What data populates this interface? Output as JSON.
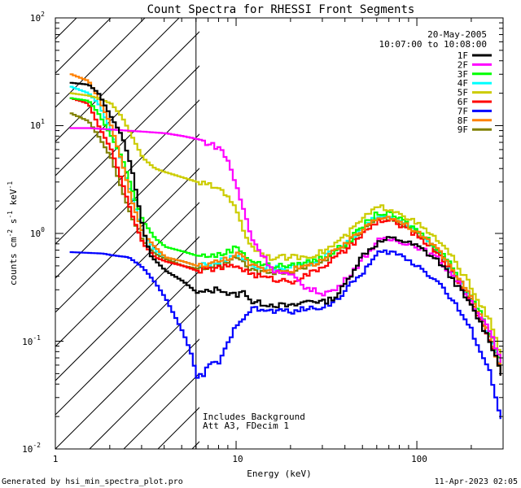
{
  "chart_data": {
    "type": "line",
    "title": "Count Spectra for RHESSI Front Segments",
    "xlabel": "Energy (keV)",
    "ylabel_parts": {
      "main": "counts cm",
      "exp1": "-2",
      "s": " s",
      "exp2": "-1",
      "kev": " keV",
      "exp3": "-1"
    },
    "xscale": "log",
    "yscale": "log",
    "xlim": [
      1,
      300
    ],
    "ylim": [
      0.01,
      100
    ],
    "x_ticks": [
      {
        "value": 1,
        "label": "1"
      },
      {
        "value": 10,
        "label": "10"
      },
      {
        "value": 100,
        "label": "100"
      }
    ],
    "y_ticks": [
      {
        "value": 0.01,
        "base": "10",
        "exp": "-2"
      },
      {
        "value": 0.1,
        "base": "10",
        "exp": "-1"
      },
      {
        "value": 1,
        "base": "10",
        "exp": "0"
      },
      {
        "value": 10,
        "base": "10",
        "exp": "1"
      },
      {
        "value": 100,
        "base": "10",
        "exp": "2"
      }
    ],
    "date": "20-May-2005",
    "time_range": "10:07:00 to 10:08:00",
    "hatched_region_max_kev": 6,
    "annotations": [
      "Includes Background",
      "Att A3, FDecim  1"
    ],
    "footer_left": "Generated by hsi_min_spectra_plot.pro",
    "footer_right": "11-Apr-2023 02:05",
    "series": [
      {
        "name": "1F",
        "color": "#000000",
        "points": [
          [
            1.2,
            25
          ],
          [
            1.5,
            24
          ],
          [
            1.7,
            20
          ],
          [
            2.0,
            12
          ],
          [
            2.3,
            8
          ],
          [
            2.6,
            4
          ],
          [
            3.0,
            1.1
          ],
          [
            3.3,
            0.62
          ],
          [
            4,
            0.45
          ],
          [
            5,
            0.36
          ],
          [
            6,
            0.28
          ],
          [
            7,
            0.29
          ],
          [
            8,
            0.31
          ],
          [
            9,
            0.27
          ],
          [
            10,
            0.27
          ],
          [
            11,
            0.29
          ],
          [
            12,
            0.23
          ],
          [
            15,
            0.22
          ],
          [
            20,
            0.21
          ],
          [
            25,
            0.24
          ],
          [
            30,
            0.23
          ],
          [
            35,
            0.26
          ],
          [
            40,
            0.35
          ],
          [
            45,
            0.5
          ],
          [
            50,
            0.65
          ],
          [
            60,
            0.82
          ],
          [
            70,
            0.9
          ],
          [
            80,
            0.87
          ],
          [
            100,
            0.75
          ],
          [
            130,
            0.55
          ],
          [
            160,
            0.35
          ],
          [
            200,
            0.2
          ],
          [
            250,
            0.1
          ],
          [
            290,
            0.05
          ]
        ]
      },
      {
        "name": "2F",
        "color": "#ff00ff",
        "points": [
          [
            1.2,
            9.5
          ],
          [
            1.5,
            9.5
          ],
          [
            2,
            9.2
          ],
          [
            3,
            8.8
          ],
          [
            4,
            8.5
          ],
          [
            5,
            8
          ],
          [
            6,
            7.5
          ],
          [
            8,
            6.2
          ],
          [
            9,
            4.5
          ],
          [
            10,
            2.5
          ],
          [
            11,
            1.5
          ],
          [
            12,
            0.9
          ],
          [
            14,
            0.6
          ],
          [
            16,
            0.45
          ],
          [
            20,
            0.4
          ],
          [
            25,
            0.3
          ],
          [
            30,
            0.28
          ],
          [
            35,
            0.3
          ],
          [
            40,
            0.38
          ],
          [
            50,
            0.6
          ],
          [
            60,
            0.85
          ],
          [
            70,
            0.88
          ],
          [
            80,
            0.85
          ],
          [
            100,
            0.75
          ],
          [
            130,
            0.57
          ],
          [
            160,
            0.38
          ],
          [
            200,
            0.22
          ],
          [
            250,
            0.12
          ],
          [
            290,
            0.06
          ]
        ]
      },
      {
        "name": "3F",
        "color": "#00ff00",
        "points": [
          [
            1.2,
            18
          ],
          [
            1.5,
            17
          ],
          [
            1.7,
            13
          ],
          [
            2.0,
            8
          ],
          [
            2.3,
            5
          ],
          [
            2.6,
            2.6
          ],
          [
            3.0,
            1.3
          ],
          [
            3.5,
            0.9
          ],
          [
            4,
            0.75
          ],
          [
            5,
            0.68
          ],
          [
            6,
            0.62
          ],
          [
            8,
            0.63
          ],
          [
            10,
            0.75
          ],
          [
            12,
            0.55
          ],
          [
            15,
            0.5
          ],
          [
            20,
            0.5
          ],
          [
            25,
            0.55
          ],
          [
            30,
            0.6
          ],
          [
            40,
            0.8
          ],
          [
            50,
            1.2
          ],
          [
            60,
            1.55
          ],
          [
            70,
            1.5
          ],
          [
            80,
            1.35
          ],
          [
            100,
            1.05
          ],
          [
            130,
            0.72
          ],
          [
            160,
            0.45
          ],
          [
            200,
            0.25
          ],
          [
            250,
            0.12
          ],
          [
            290,
            0.06
          ]
        ]
      },
      {
        "name": "4F",
        "color": "#00ffff",
        "points": [
          [
            1.2,
            23
          ],
          [
            1.5,
            20
          ],
          [
            1.7,
            16
          ],
          [
            2.0,
            9
          ],
          [
            2.3,
            4.5
          ],
          [
            2.6,
            2.2
          ],
          [
            3.0,
            1.0
          ],
          [
            3.5,
            0.7
          ],
          [
            4,
            0.6
          ],
          [
            5,
            0.55
          ],
          [
            6,
            0.5
          ],
          [
            8,
            0.55
          ],
          [
            10,
            0.65
          ],
          [
            12,
            0.5
          ],
          [
            15,
            0.48
          ],
          [
            20,
            0.48
          ],
          [
            25,
            0.52
          ],
          [
            30,
            0.6
          ],
          [
            40,
            0.8
          ],
          [
            50,
            1.15
          ],
          [
            60,
            1.45
          ],
          [
            70,
            1.4
          ],
          [
            80,
            1.3
          ],
          [
            100,
            1.0
          ],
          [
            130,
            0.68
          ],
          [
            160,
            0.42
          ],
          [
            200,
            0.23
          ],
          [
            250,
            0.11
          ],
          [
            290,
            0.05
          ]
        ]
      },
      {
        "name": "5F",
        "color": "#cccc00",
        "points": [
          [
            1.2,
            20
          ],
          [
            1.5,
            19
          ],
          [
            1.7,
            18
          ],
          [
            2.0,
            16
          ],
          [
            2.3,
            12
          ],
          [
            2.6,
            8
          ],
          [
            3.0,
            5
          ],
          [
            3.5,
            4
          ],
          [
            4,
            3.7
          ],
          [
            5,
            3.3
          ],
          [
            6,
            3.0
          ],
          [
            8,
            2.6
          ],
          [
            9,
            2.2
          ],
          [
            10,
            1.5
          ],
          [
            11,
            1.0
          ],
          [
            12,
            0.75
          ],
          [
            15,
            0.6
          ],
          [
            20,
            0.6
          ],
          [
            25,
            0.62
          ],
          [
            30,
            0.68
          ],
          [
            40,
            0.95
          ],
          [
            50,
            1.4
          ],
          [
            60,
            1.75
          ],
          [
            70,
            1.7
          ],
          [
            80,
            1.55
          ],
          [
            100,
            1.2
          ],
          [
            130,
            0.85
          ],
          [
            160,
            0.55
          ],
          [
            200,
            0.3
          ],
          [
            250,
            0.15
          ],
          [
            290,
            0.07
          ]
        ]
      },
      {
        "name": "6F",
        "color": "#ff0000",
        "points": [
          [
            1.2,
            18
          ],
          [
            1.5,
            16
          ],
          [
            1.7,
            10
          ],
          [
            2.0,
            6
          ],
          [
            2.3,
            3
          ],
          [
            2.6,
            1.5
          ],
          [
            3.0,
            0.8
          ],
          [
            3.5,
            0.6
          ],
          [
            4,
            0.55
          ],
          [
            5,
            0.5
          ],
          [
            6,
            0.45
          ],
          [
            8,
            0.48
          ],
          [
            10,
            0.5
          ],
          [
            12,
            0.42
          ],
          [
            15,
            0.38
          ],
          [
            20,
            0.36
          ],
          [
            25,
            0.42
          ],
          [
            30,
            0.5
          ],
          [
            40,
            0.7
          ],
          [
            50,
            1.0
          ],
          [
            60,
            1.3
          ],
          [
            70,
            1.3
          ],
          [
            80,
            1.2
          ],
          [
            100,
            0.95
          ],
          [
            130,
            0.65
          ],
          [
            160,
            0.4
          ],
          [
            200,
            0.22
          ],
          [
            250,
            0.1
          ],
          [
            290,
            0.05
          ]
        ]
      },
      {
        "name": "7F",
        "color": "#0000ff",
        "points": [
          [
            1.2,
            0.67
          ],
          [
            1.5,
            0.66
          ],
          [
            1.8,
            0.65
          ],
          [
            2.0,
            0.63
          ],
          [
            2.5,
            0.6
          ],
          [
            3.0,
            0.48
          ],
          [
            3.5,
            0.35
          ],
          [
            4,
            0.25
          ],
          [
            4.5,
            0.17
          ],
          [
            5,
            0.12
          ],
          [
            5.5,
            0.08
          ],
          [
            6,
            0.045
          ],
          [
            6.5,
            0.05
          ],
          [
            7,
            0.06
          ],
          [
            8,
            0.065
          ],
          [
            9,
            0.1
          ],
          [
            10,
            0.15
          ],
          [
            12,
            0.2
          ],
          [
            15,
            0.19
          ],
          [
            20,
            0.19
          ],
          [
            25,
            0.2
          ],
          [
            30,
            0.21
          ],
          [
            35,
            0.24
          ],
          [
            40,
            0.3
          ],
          [
            50,
            0.45
          ],
          [
            60,
            0.65
          ],
          [
            70,
            0.68
          ],
          [
            80,
            0.62
          ],
          [
            100,
            0.5
          ],
          [
            130,
            0.35
          ],
          [
            160,
            0.22
          ],
          [
            200,
            0.12
          ],
          [
            250,
            0.05
          ],
          [
            290,
            0.018
          ]
        ]
      },
      {
        "name": "8F",
        "color": "#ff8000",
        "points": [
          [
            1.2,
            30
          ],
          [
            1.5,
            26
          ],
          [
            1.7,
            18
          ],
          [
            2.0,
            10
          ],
          [
            2.3,
            4.5
          ],
          [
            2.6,
            2
          ],
          [
            3.0,
            1.0
          ],
          [
            3.5,
            0.75
          ],
          [
            4,
            0.6
          ],
          [
            5,
            0.55
          ],
          [
            6,
            0.5
          ],
          [
            8,
            0.55
          ],
          [
            10,
            0.65
          ],
          [
            12,
            0.5
          ],
          [
            15,
            0.45
          ],
          [
            20,
            0.46
          ],
          [
            25,
            0.5
          ],
          [
            30,
            0.58
          ],
          [
            40,
            0.8
          ],
          [
            50,
            1.12
          ],
          [
            60,
            1.45
          ],
          [
            70,
            1.4
          ],
          [
            80,
            1.28
          ],
          [
            100,
            1.0
          ],
          [
            130,
            0.7
          ],
          [
            160,
            0.43
          ],
          [
            200,
            0.24
          ],
          [
            250,
            0.11
          ],
          [
            290,
            0.05
          ]
        ]
      },
      {
        "name": "9F",
        "color": "#808000",
        "points": [
          [
            1.2,
            13
          ],
          [
            1.5,
            11
          ],
          [
            1.7,
            8
          ],
          [
            2.0,
            5
          ],
          [
            2.3,
            2.5
          ],
          [
            2.6,
            1.4
          ],
          [
            3.0,
            0.85
          ],
          [
            3.5,
            0.65
          ],
          [
            4,
            0.58
          ],
          [
            5,
            0.5
          ],
          [
            6,
            0.47
          ],
          [
            8,
            0.5
          ],
          [
            10,
            0.6
          ],
          [
            12,
            0.45
          ],
          [
            15,
            0.43
          ],
          [
            20,
            0.45
          ],
          [
            25,
            0.5
          ],
          [
            30,
            0.57
          ],
          [
            40,
            0.78
          ],
          [
            50,
            1.1
          ],
          [
            60,
            1.4
          ],
          [
            70,
            1.37
          ],
          [
            80,
            1.25
          ],
          [
            100,
            0.98
          ],
          [
            130,
            0.68
          ],
          [
            160,
            0.42
          ],
          [
            200,
            0.23
          ],
          [
            250,
            0.11
          ],
          [
            290,
            0.05
          ]
        ]
      }
    ]
  }
}
